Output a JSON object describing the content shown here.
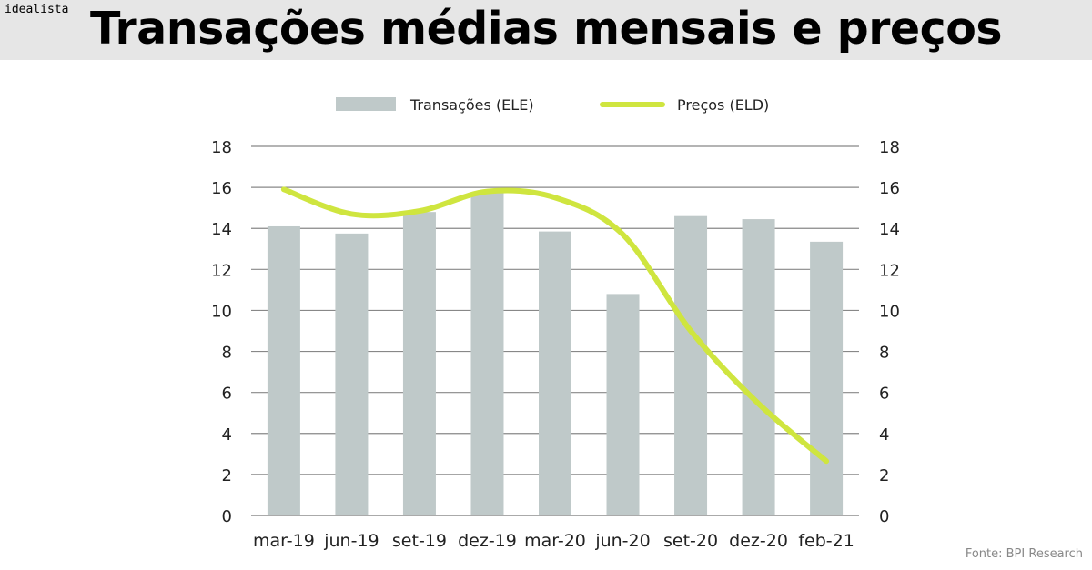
{
  "header": {
    "brand": "idealista",
    "title": "Transações médias mensais e preços"
  },
  "source": "Fonte: BPI Research",
  "chart_data": {
    "type": "bar+line",
    "categories": [
      "mar-19",
      "jun-19",
      "set-19",
      "dez-19",
      "mar-20",
      "jun-20",
      "set-20",
      "dez-20",
      "feb-21"
    ],
    "series": [
      {
        "name": "Transações (ELE)",
        "type": "bar",
        "axis": "left",
        "color": "#bfc9c9",
        "values": [
          14.1,
          13.75,
          14.8,
          15.75,
          13.85,
          10.8,
          14.6,
          14.45,
          13.35
        ]
      },
      {
        "name": "Preços (ELD)",
        "type": "line",
        "axis": "right",
        "color": "#cfe53f",
        "values": [
          15.9,
          14.7,
          14.85,
          15.8,
          15.5,
          13.7,
          9.0,
          5.45,
          2.65
        ]
      }
    ],
    "ylim": [
      0,
      18
    ],
    "yticks": [
      0,
      2,
      4,
      6,
      8,
      10,
      12,
      14,
      16,
      18
    ],
    "y2lim": [
      0,
      18
    ],
    "grid": true,
    "legend": "top"
  }
}
